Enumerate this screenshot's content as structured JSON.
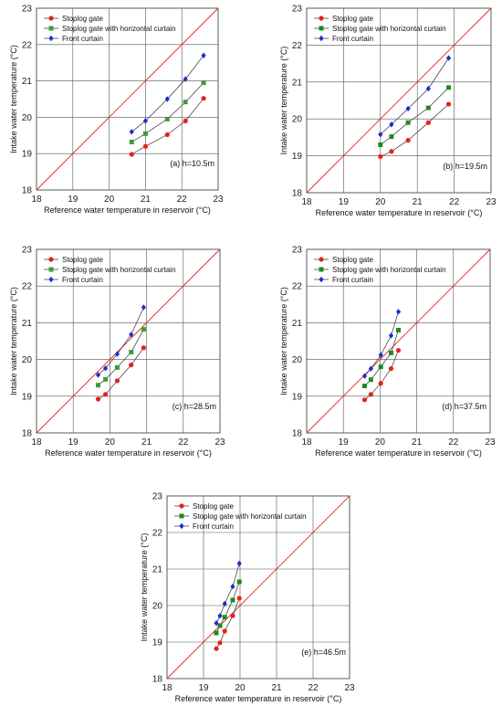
{
  "chart_data": [
    {
      "type": "line",
      "panel_label": "(a) h=10.5m",
      "xlabel": "Reference water temperature in reservoir (°C)",
      "ylabel": "Intake water temperature (°C)",
      "xlim": [
        18,
        23
      ],
      "ylim": [
        18,
        23
      ],
      "xticks": [
        "18",
        "19",
        "20",
        "21",
        "22",
        "23"
      ],
      "yticks": [
        "18",
        "19",
        "20",
        "21",
        "22",
        "23"
      ],
      "grid": true,
      "legend_position": "top-left",
      "reference_line": {
        "type": "y=x",
        "color": "#e8201a"
      },
      "series": [
        {
          "name": "Stoplog gate",
          "marker": "circle",
          "color": "#e8201a",
          "x": [
            20.62,
            21.0,
            21.6,
            22.1,
            22.6
          ],
          "y": [
            18.98,
            19.2,
            19.52,
            19.9,
            20.52
          ]
        },
        {
          "name": "Stoplog gate with horizontal curtain",
          "marker": "square",
          "color": "#3c9a3c",
          "x": [
            20.62,
            21.0,
            21.6,
            22.1,
            22.6
          ],
          "y": [
            19.32,
            19.55,
            19.95,
            20.42,
            20.95
          ]
        },
        {
          "name": "Front curtain",
          "marker": "diamond",
          "color": "#1a2fcf",
          "x": [
            20.62,
            21.0,
            21.6,
            22.1,
            22.6
          ],
          "y": [
            19.6,
            19.9,
            20.5,
            21.05,
            21.7
          ]
        }
      ]
    },
    {
      "type": "line",
      "panel_label": "(b) h=19.5m",
      "xlabel": "Reference water temperature in reservoir (°C)",
      "ylabel": "Intake water temperature (°C)",
      "xlim": [
        18,
        23
      ],
      "ylim": [
        18,
        23
      ],
      "xticks": [
        "18",
        "19",
        "20",
        "21",
        "22",
        "23"
      ],
      "yticks": [
        "18",
        "19",
        "20",
        "21",
        "22",
        "23"
      ],
      "grid": true,
      "legend_position": "top-left",
      "reference_line": {
        "type": "y=x",
        "color": "#e8201a"
      },
      "series": [
        {
          "name": "Stoplog gate",
          "marker": "circle",
          "color": "#e8201a",
          "x": [
            20.0,
            20.3,
            20.75,
            21.3,
            21.85
          ],
          "y": [
            18.98,
            19.12,
            19.42,
            19.9,
            20.4
          ]
        },
        {
          "name": "Stoplog gate with horizontal curtain",
          "marker": "square",
          "color": "#1e8a1e",
          "x": [
            20.0,
            20.3,
            20.75,
            21.3,
            21.85
          ],
          "y": [
            19.3,
            19.52,
            19.9,
            20.3,
            20.85
          ]
        },
        {
          "name": "Front curtain",
          "marker": "diamond",
          "color": "#1a2fcf",
          "x": [
            20.0,
            20.3,
            20.75,
            21.3,
            21.85
          ],
          "y": [
            19.58,
            19.85,
            20.28,
            20.82,
            21.65
          ]
        }
      ]
    },
    {
      "type": "line",
      "panel_label": "(c) h=28.5m",
      "xlabel": "Reference water temperature in reservoir (°C)",
      "ylabel": "Intake water temperature (°C)",
      "xlim": [
        18,
        23
      ],
      "ylim": [
        18,
        23
      ],
      "xticks": [
        "18",
        "19",
        "20",
        "21",
        "22",
        "23"
      ],
      "yticks": [
        "18",
        "19",
        "20",
        "21",
        "22",
        "23"
      ],
      "grid": true,
      "legend_position": "top-left",
      "reference_line": {
        "type": "y=x",
        "color": "#e8201a"
      },
      "series": [
        {
          "name": "Stoplog gate",
          "marker": "circle",
          "color": "#e8201a",
          "x": [
            19.68,
            19.88,
            20.2,
            20.58,
            20.92
          ],
          "y": [
            18.92,
            19.05,
            19.42,
            19.85,
            20.32
          ]
        },
        {
          "name": "Stoplog gate with horizontal curtain",
          "marker": "square",
          "color": "#3c9a3c",
          "x": [
            19.68,
            19.88,
            20.2,
            20.58,
            20.92
          ],
          "y": [
            19.3,
            19.46,
            19.78,
            20.2,
            20.82
          ]
        },
        {
          "name": "Front curtain",
          "marker": "diamond",
          "color": "#1a2fcf",
          "x": [
            19.68,
            19.88,
            20.2,
            20.58,
            20.92
          ],
          "y": [
            19.58,
            19.76,
            20.15,
            20.68,
            21.42
          ]
        }
      ]
    },
    {
      "type": "line",
      "panel_label": "(d) h=37.5m",
      "xlabel": "Reference water temperature in reservoir (°C)",
      "ylabel": "Intake water temperature (°C)",
      "xlim": [
        18,
        23
      ],
      "ylim": [
        18,
        23
      ],
      "xticks": [
        "18",
        "19",
        "20",
        "21",
        "22",
        "23"
      ],
      "yticks": [
        "18",
        "19",
        "20",
        "21",
        "22",
        "23"
      ],
      "grid": true,
      "legend_position": "top-left",
      "reference_line": {
        "type": "y=x",
        "color": "#e8201a"
      },
      "series": [
        {
          "name": "Stoplog gate",
          "marker": "circle",
          "color": "#e8201a",
          "x": [
            19.58,
            19.75,
            20.02,
            20.3,
            20.5
          ],
          "y": [
            18.9,
            19.05,
            19.35,
            19.75,
            20.25
          ]
        },
        {
          "name": "Stoplog gate with horizontal curtain",
          "marker": "square",
          "color": "#1e8a1e",
          "x": [
            19.58,
            19.75,
            20.02,
            20.3,
            20.5
          ],
          "y": [
            19.28,
            19.45,
            19.8,
            20.18,
            20.8
          ]
        },
        {
          "name": "Front curtain",
          "marker": "diamond",
          "color": "#1a2fcf",
          "x": [
            19.58,
            19.75,
            20.02,
            20.3,
            20.5
          ],
          "y": [
            19.55,
            19.75,
            20.12,
            20.65,
            21.3
          ]
        }
      ]
    },
    {
      "type": "line",
      "panel_label": "(e) h=46.5m",
      "xlabel": "Reference water temperature in reservoir (°C)",
      "ylabel": "Intake water temperature (°C)",
      "xlim": [
        18,
        23
      ],
      "ylim": [
        18,
        23
      ],
      "xticks": [
        "18",
        "19",
        "20",
        "21",
        "22",
        "23"
      ],
      "yticks": [
        "18",
        "19",
        "20",
        "21",
        "22",
        "23"
      ],
      "grid": true,
      "legend_position": "top-left",
      "reference_line": {
        "type": "y=x",
        "color": "#e8201a"
      },
      "series": [
        {
          "name": "Stoplog gate",
          "marker": "circle",
          "color": "#e8201a",
          "x": [
            19.35,
            19.45,
            19.58,
            19.8,
            19.98
          ],
          "y": [
            18.82,
            18.98,
            19.3,
            19.72,
            20.2
          ]
        },
        {
          "name": "Stoplog gate with horizontal curtain",
          "marker": "square",
          "color": "#1e8a1e",
          "x": [
            19.35,
            19.45,
            19.58,
            19.8,
            19.98
          ],
          "y": [
            19.25,
            19.45,
            19.68,
            20.15,
            20.65
          ]
        },
        {
          "name": "Front curtain",
          "marker": "diamond",
          "color": "#1a2fcf",
          "x": [
            19.35,
            19.45,
            19.58,
            19.8,
            19.98
          ],
          "y": [
            19.52,
            19.72,
            20.05,
            20.52,
            21.15
          ]
        }
      ]
    }
  ]
}
